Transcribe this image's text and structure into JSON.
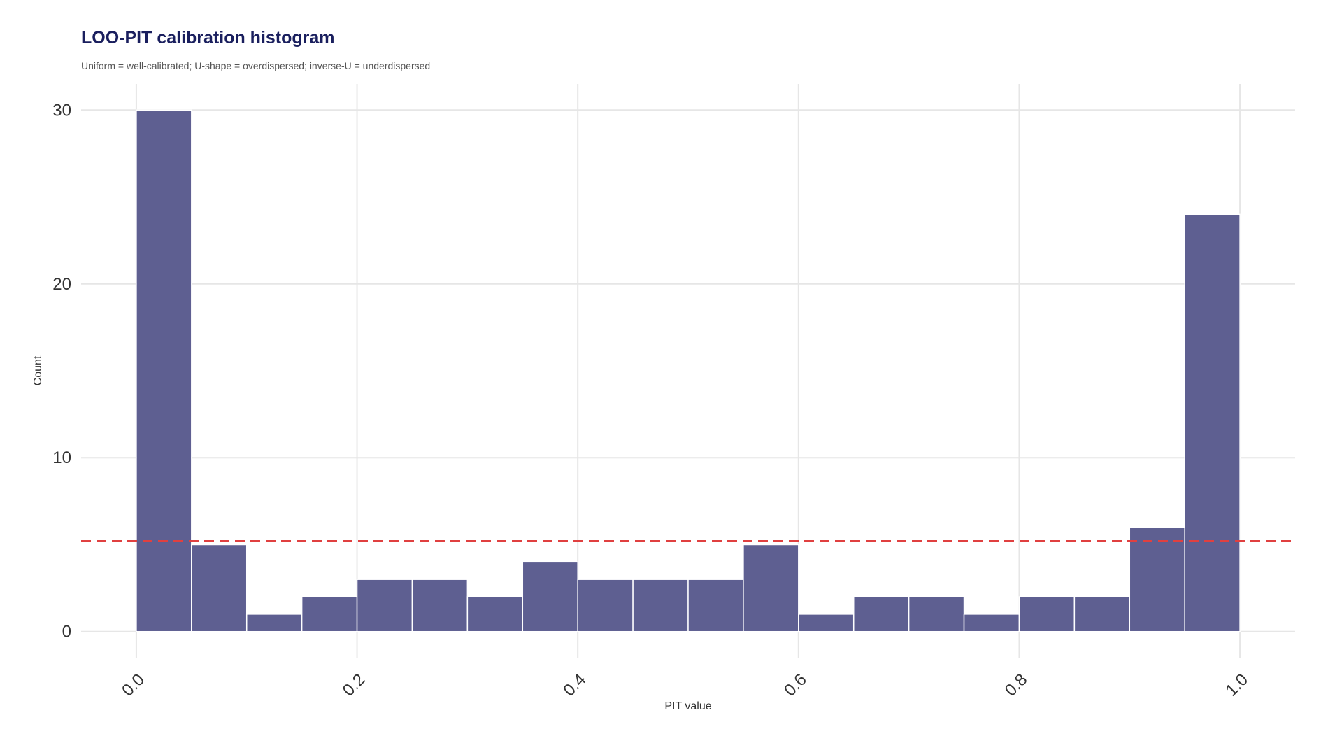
{
  "chart_data": {
    "type": "bar",
    "title": "LOO-PIT calibration histogram",
    "subtitle": "Uniform = well-calibrated; U-shape = overdispersed; inverse-U = underdispersed",
    "xlabel": "PIT value",
    "ylabel": "Count",
    "bin_width": 0.05,
    "bins": [
      {
        "x0": 0.0,
        "x1": 0.05,
        "count": 30
      },
      {
        "x0": 0.05,
        "x1": 0.1,
        "count": 5
      },
      {
        "x0": 0.1,
        "x1": 0.15,
        "count": 1
      },
      {
        "x0": 0.15,
        "x1": 0.2,
        "count": 2
      },
      {
        "x0": 0.2,
        "x1": 0.25,
        "count": 3
      },
      {
        "x0": 0.25,
        "x1": 0.3,
        "count": 3
      },
      {
        "x0": 0.3,
        "x1": 0.35,
        "count": 2
      },
      {
        "x0": 0.35,
        "x1": 0.4,
        "count": 4
      },
      {
        "x0": 0.4,
        "x1": 0.45,
        "count": 3
      },
      {
        "x0": 0.45,
        "x1": 0.5,
        "count": 3
      },
      {
        "x0": 0.5,
        "x1": 0.55,
        "count": 3
      },
      {
        "x0": 0.55,
        "x1": 0.6,
        "count": 5
      },
      {
        "x0": 0.6,
        "x1": 0.65,
        "count": 1
      },
      {
        "x0": 0.65,
        "x1": 0.7,
        "count": 2
      },
      {
        "x0": 0.7,
        "x1": 0.75,
        "count": 2
      },
      {
        "x0": 0.75,
        "x1": 0.8,
        "count": 1
      },
      {
        "x0": 0.8,
        "x1": 0.85,
        "count": 2
      },
      {
        "x0": 0.85,
        "x1": 0.9,
        "count": 2
      },
      {
        "x0": 0.9,
        "x1": 0.95,
        "count": 6
      },
      {
        "x0": 0.95,
        "x1": 1.0,
        "count": 24
      }
    ],
    "reference_line": {
      "y": 5.2,
      "style": "dashed",
      "color": "#e04040"
    },
    "xlim": [
      -0.05,
      1.05
    ],
    "ylim": [
      -1.5,
      31.5
    ],
    "x_ticks": [
      0.0,
      0.2,
      0.4,
      0.6,
      0.8,
      1.0
    ],
    "x_tick_labels": [
      "0.0",
      "0.2",
      "0.4",
      "0.6",
      "0.8",
      "1.0"
    ],
    "y_ticks": [
      0,
      10,
      20,
      30
    ],
    "y_tick_labels": [
      "0",
      "10",
      "20",
      "30"
    ],
    "grid": true,
    "bar_color": "#5e5f91",
    "bar_edge_color": "#ffffff",
    "title_color": "#1a1f5e"
  }
}
